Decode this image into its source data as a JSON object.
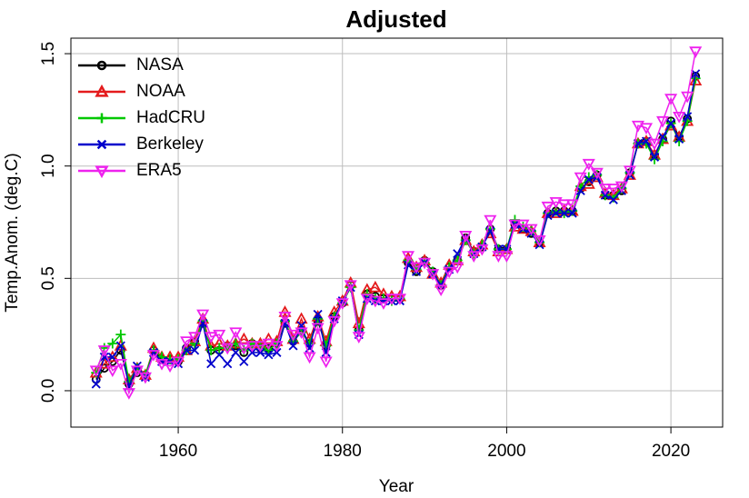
{
  "chart_data": {
    "type": "line",
    "title": "Adjusted",
    "xlabel": "Year",
    "ylabel": "Temp.Anom. (deg.C)",
    "x": [
      1950,
      1951,
      1952,
      1953,
      1954,
      1955,
      1956,
      1957,
      1958,
      1959,
      1960,
      1961,
      1962,
      1963,
      1964,
      1965,
      1966,
      1967,
      1968,
      1969,
      1970,
      1971,
      1972,
      1973,
      1974,
      1975,
      1976,
      1977,
      1978,
      1979,
      1980,
      1981,
      1982,
      1983,
      1984,
      1985,
      1986,
      1987,
      1988,
      1989,
      1990,
      1991,
      1992,
      1993,
      1994,
      1995,
      1996,
      1997,
      1998,
      1999,
      2000,
      2001,
      2002,
      2003,
      2004,
      2005,
      2006,
      2007,
      2008,
      2009,
      2010,
      2011,
      2012,
      2013,
      2014,
      2015,
      2016,
      2017,
      2018,
      2019,
      2020,
      2021,
      2022,
      2023
    ],
    "series": [
      {
        "name": "NASA",
        "color": "#000000",
        "marker": "circle",
        "values": [
          0.05,
          0.1,
          0.13,
          0.18,
          0.03,
          0.08,
          0.07,
          0.18,
          0.14,
          0.14,
          0.13,
          0.19,
          0.22,
          0.3,
          0.18,
          0.18,
          0.2,
          0.2,
          0.17,
          0.21,
          0.19,
          0.19,
          0.21,
          0.3,
          0.22,
          0.27,
          0.21,
          0.31,
          0.2,
          0.33,
          0.39,
          0.47,
          0.27,
          0.43,
          0.42,
          0.41,
          0.41,
          0.41,
          0.57,
          0.53,
          0.58,
          0.53,
          0.47,
          0.55,
          0.58,
          0.68,
          0.62,
          0.64,
          0.72,
          0.63,
          0.63,
          0.74,
          0.72,
          0.7,
          0.66,
          0.79,
          0.8,
          0.8,
          0.8,
          0.9,
          0.93,
          0.96,
          0.87,
          0.87,
          0.89,
          0.97,
          1.1,
          1.11,
          1.05,
          1.12,
          1.2,
          1.13,
          1.21,
          1.4
        ]
      },
      {
        "name": "NOAA",
        "color": "#e41a1c",
        "marker": "triangle-up",
        "values": [
          0.08,
          0.12,
          0.15,
          0.2,
          0.05,
          0.1,
          0.07,
          0.19,
          0.15,
          0.15,
          0.15,
          0.18,
          0.22,
          0.32,
          0.2,
          0.21,
          0.2,
          0.21,
          0.23,
          0.21,
          0.21,
          0.23,
          0.22,
          0.35,
          0.23,
          0.32,
          0.23,
          0.33,
          0.22,
          0.35,
          0.4,
          0.48,
          0.3,
          0.45,
          0.46,
          0.43,
          0.42,
          0.42,
          0.59,
          0.55,
          0.58,
          0.52,
          0.48,
          0.56,
          0.58,
          0.67,
          0.62,
          0.65,
          0.7,
          0.62,
          0.63,
          0.73,
          0.72,
          0.71,
          0.66,
          0.79,
          0.79,
          0.8,
          0.8,
          0.91,
          0.92,
          0.95,
          0.88,
          0.87,
          0.9,
          0.96,
          1.1,
          1.11,
          1.05,
          1.12,
          1.18,
          1.13,
          1.2,
          1.38
        ]
      },
      {
        "name": "HadCRU",
        "color": "#00c800",
        "marker": "plus",
        "values": [
          0.08,
          0.19,
          0.21,
          0.25,
          0.04,
          0.1,
          0.07,
          0.18,
          0.15,
          0.14,
          0.14,
          0.18,
          0.21,
          0.31,
          0.18,
          0.19,
          0.19,
          0.21,
          0.18,
          0.21,
          0.2,
          0.18,
          0.21,
          0.31,
          0.22,
          0.26,
          0.21,
          0.32,
          0.2,
          0.33,
          0.39,
          0.46,
          0.27,
          0.43,
          0.41,
          0.41,
          0.4,
          0.41,
          0.58,
          0.54,
          0.57,
          0.53,
          0.47,
          0.55,
          0.58,
          0.67,
          0.61,
          0.65,
          0.72,
          0.63,
          0.63,
          0.76,
          0.73,
          0.71,
          0.66,
          0.79,
          0.8,
          0.79,
          0.8,
          0.91,
          0.95,
          0.96,
          0.87,
          0.86,
          0.9,
          0.97,
          1.1,
          1.1,
          1.03,
          1.11,
          1.19,
          1.11,
          1.2,
          1.39
        ]
      },
      {
        "name": "Berkeley",
        "color": "#0000cc",
        "marker": "cross",
        "values": [
          0.03,
          0.15,
          0.15,
          0.2,
          0.02,
          0.11,
          0.06,
          0.17,
          0.13,
          0.13,
          0.12,
          0.18,
          0.18,
          0.3,
          0.12,
          0.16,
          0.12,
          0.17,
          0.13,
          0.17,
          0.17,
          0.16,
          0.17,
          0.3,
          0.2,
          0.29,
          0.19,
          0.34,
          0.17,
          0.32,
          0.4,
          0.46,
          0.25,
          0.41,
          0.4,
          0.4,
          0.4,
          0.4,
          0.56,
          0.53,
          0.57,
          0.52,
          0.47,
          0.54,
          0.61,
          0.68,
          0.61,
          0.64,
          0.71,
          0.63,
          0.63,
          0.74,
          0.72,
          0.7,
          0.65,
          0.78,
          0.79,
          0.79,
          0.79,
          0.89,
          0.94,
          0.95,
          0.87,
          0.85,
          0.89,
          0.96,
          1.1,
          1.11,
          1.04,
          1.13,
          1.19,
          1.12,
          1.22,
          1.41
        ]
      },
      {
        "name": "ERA5",
        "color": "#ee22ee",
        "marker": "triangle-down",
        "values": [
          0.09,
          0.18,
          0.09,
          0.12,
          -0.01,
          0.09,
          0.06,
          0.16,
          0.12,
          0.11,
          0.13,
          0.22,
          0.24,
          0.34,
          0.24,
          0.25,
          0.19,
          0.26,
          0.19,
          0.2,
          0.2,
          0.21,
          0.2,
          0.33,
          0.25,
          0.26,
          0.15,
          0.28,
          0.13,
          0.31,
          0.39,
          0.47,
          0.24,
          0.41,
          0.4,
          0.39,
          0.41,
          0.41,
          0.6,
          0.55,
          0.57,
          0.52,
          0.45,
          0.53,
          0.55,
          0.69,
          0.6,
          0.63,
          0.76,
          0.6,
          0.6,
          0.74,
          0.74,
          0.72,
          0.67,
          0.82,
          0.84,
          0.83,
          0.83,
          0.95,
          1.01,
          0.97,
          0.9,
          0.9,
          0.91,
          0.98,
          1.18,
          1.17,
          1.1,
          1.2,
          1.3,
          1.22,
          1.31,
          1.51
        ]
      }
    ],
    "xlim": [
      1946.93,
      2026.3
    ],
    "xticks": [
      1960,
      1980,
      2000,
      2020
    ],
    "ylim": [
      -0.162,
      1.569
    ],
    "yticks": [
      {
        "value": 0,
        "label": "0.0"
      },
      0.5,
      {
        "value": 1,
        "label": "1.0"
      },
      1.5
    ],
    "grid": true,
    "legend": "top-left"
  }
}
